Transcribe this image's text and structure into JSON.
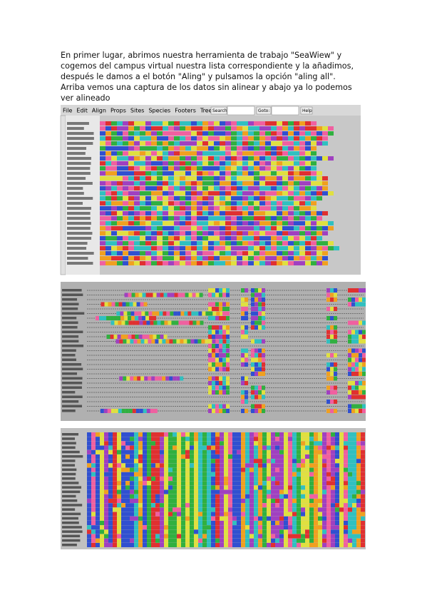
{
  "paragraph": "En primer lugar, abrimos nuestra herramienta de trabajo \"SeaWiew\" y cogemos del campus virtual nuestra lista correspondiente y la añadimos, después le damos a el botón \"Aling\" y pulsamos la opción \"aling all\". Arriba vemos una captura de los datos sin alinear y abajo ya lo podemos ver alineado",
  "screenshot_1": {
    "menu": [
      "File",
      "Edit",
      "Align",
      "Props",
      "Sites",
      "Species",
      "Footers",
      "Trees"
    ],
    "search_button": "Search:",
    "goto_button": "Goto:",
    "help_button": "Help"
  }
}
